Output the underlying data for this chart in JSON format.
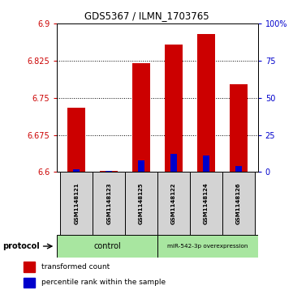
{
  "title": "GDS5367 / ILMN_1703765",
  "samples": [
    "GSM1148121",
    "GSM1148123",
    "GSM1148125",
    "GSM1148122",
    "GSM1148124",
    "GSM1148126"
  ],
  "transformed_counts": [
    6.73,
    6.602,
    6.82,
    6.858,
    6.878,
    6.778
  ],
  "percentile_ranks": [
    2,
    1,
    8,
    12,
    11,
    4
  ],
  "y_min": 6.6,
  "y_max": 6.9,
  "y_ticks_left": [
    6.6,
    6.675,
    6.75,
    6.825,
    6.9
  ],
  "y_ticks_right": [
    0,
    25,
    50,
    75,
    100
  ],
  "bar_color_red": "#cc0000",
  "bar_color_blue": "#0000cc",
  "groups": [
    {
      "label": "control",
      "color": "#a8e6a0",
      "n": 3
    },
    {
      "label": "miR-542-3p overexpression",
      "color": "#a8e6a0",
      "n": 3
    }
  ],
  "protocol_label": "protocol",
  "legend_red": "transformed count",
  "legend_blue": "percentile rank within the sample",
  "tick_label_color_left": "#cc0000",
  "tick_label_color_right": "#0000cc",
  "sample_box_color": "#d3d3d3",
  "grid_color": "#888888",
  "title_fontsize": 8.5,
  "tick_fontsize": 7,
  "sample_fontsize": 5.0,
  "legend_fontsize": 6.5,
  "protocol_fontsize": 7.0
}
